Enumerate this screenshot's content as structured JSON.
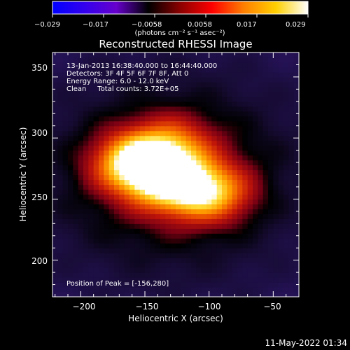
{
  "colorbar": {
    "ticks": [
      "−0.029",
      "−0.017",
      "−0.0058",
      "0.0058",
      "0.017",
      "0.029"
    ],
    "unit_label": "(photons cm⁻² s⁻¹ asec⁻²)",
    "range": [
      -0.029,
      0.029
    ],
    "palette": [
      "#0000ff",
      "#3300ee",
      "#6600cc",
      "#000000",
      "#8b0000",
      "#ff0000",
      "#ff8000",
      "#ffd000",
      "#ffffff"
    ]
  },
  "chart_data": {
    "type": "heatmap",
    "title": "Reconstructed RHESSI Image",
    "xlabel": "Heliocentric X (arcsec)",
    "ylabel": "Heliocentric Y (arcsec)",
    "xlim": [
      -222,
      -30
    ],
    "ylim": [
      170,
      370
    ],
    "xticks": [
      -200,
      -150,
      -100,
      -50
    ],
    "yticks": [
      200,
      250,
      300,
      350
    ],
    "annotations": [
      "13-Jan-2013 16:38:40.000 to 16:44:40.000",
      "Detectors: 3F 4F 5F 6F 7F 8F, Att 0",
      "Energy Range: 6.0 - 12.0 keV",
      "Clean     Total counts: 3.72E+05"
    ],
    "peak_label": "Position of Peak = [-156,280]",
    "peak": [
      -156,
      280
    ],
    "sources": [
      {
        "x": -156,
        "y": 280,
        "peak": 1.0
      },
      {
        "x": -130,
        "y": 265,
        "peak": 0.78
      },
      {
        "x": -100,
        "y": 255,
        "peak": 0.72
      },
      {
        "x": -130,
        "y": 295,
        "peak": 0.45
      }
    ]
  },
  "footer": {
    "timestamp": "11-May-2022 01:34"
  }
}
